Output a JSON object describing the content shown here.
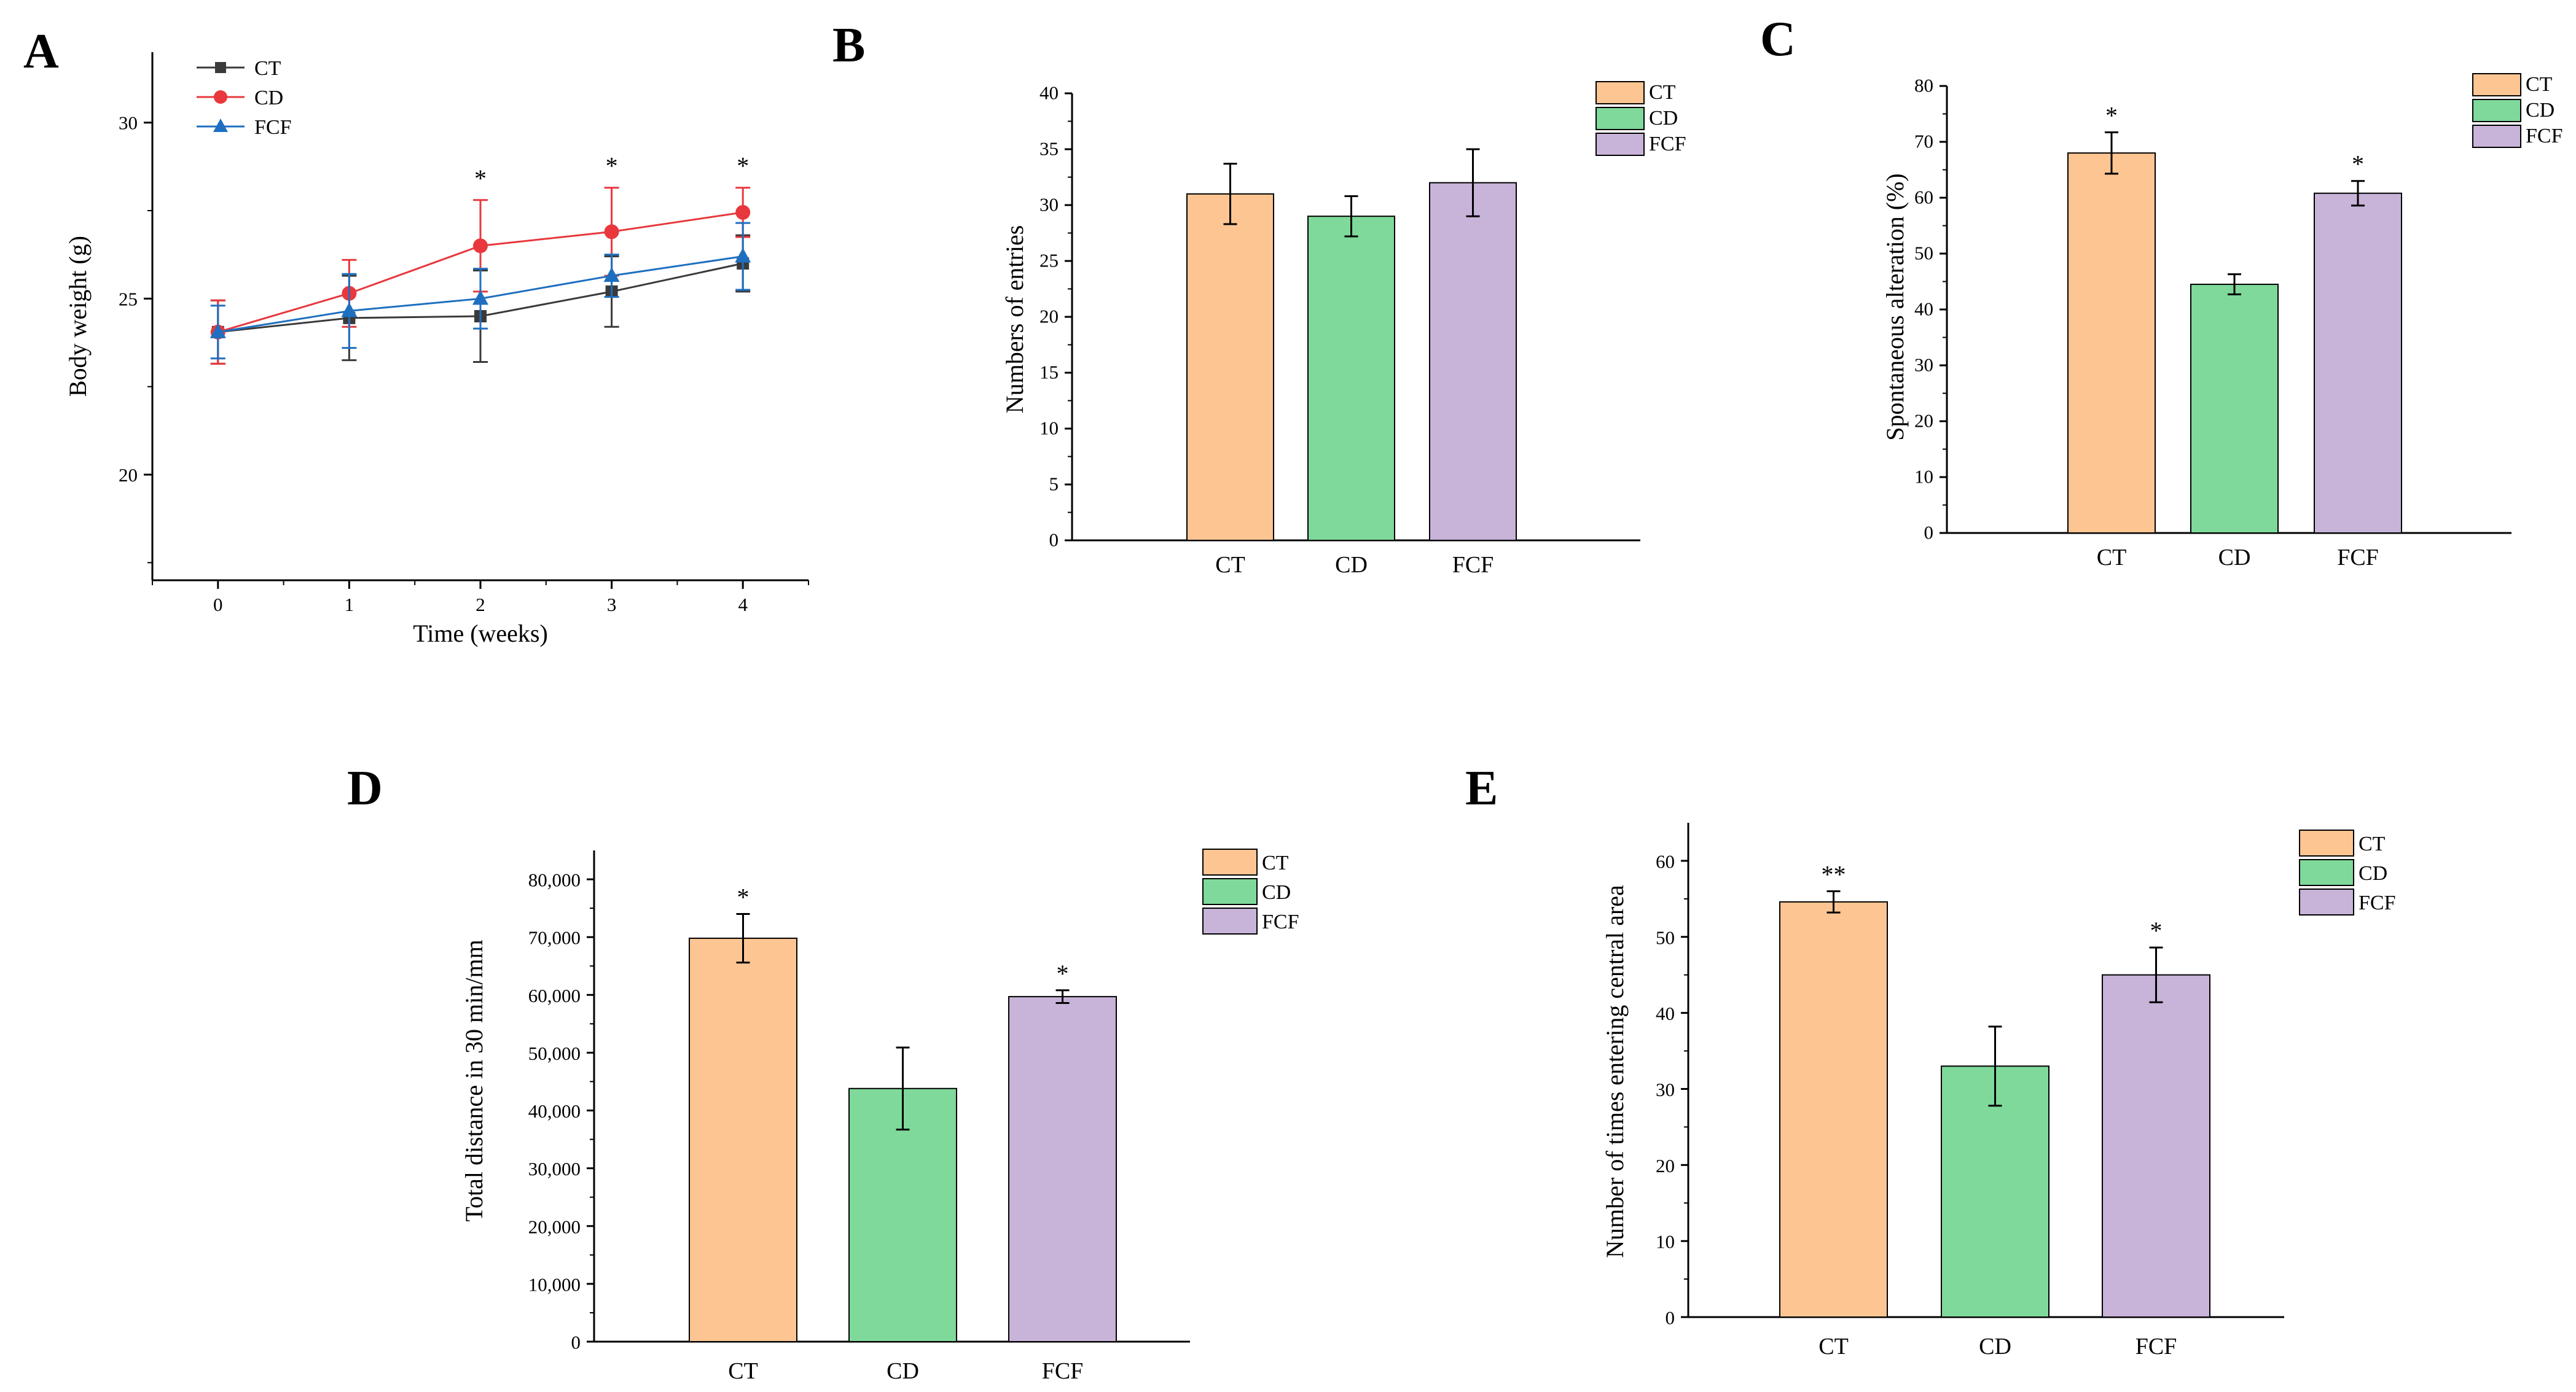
{
  "colors": {
    "CT_line": "#3a3a3a",
    "CD_line": "#e8383d",
    "FCF_line": "#1f6fc0",
    "CT_bar": "#fcc592",
    "CD_bar": "#7fd99a",
    "FCF_bar": "#c8b3d9"
  },
  "chart_data": [
    {
      "id": "A",
      "panel_label": "A",
      "type": "line",
      "xlabel": "Time (weeks)",
      "ylabel": "Body weight (g)",
      "x": [
        0,
        1,
        2,
        3,
        4
      ],
      "x_ticks": [
        "0",
        "1",
        "2",
        "3",
        "4"
      ],
      "xlim": [
        -0.5,
        4.5
      ],
      "ylim": [
        17,
        32
      ],
      "y_ticks": [
        20,
        25,
        30
      ],
      "y_tick_labels": [
        "20",
        "25",
        "30"
      ],
      "series": [
        {
          "name": "CT",
          "color_key": "CT_line",
          "marker": "square",
          "values": [
            24.05,
            24.45,
            24.5,
            25.2,
            26.0
          ],
          "errors": [
            0.9,
            1.2,
            1.3,
            1.0,
            0.8
          ]
        },
        {
          "name": "CD",
          "color_key": "CD_line",
          "marker": "circle",
          "values": [
            24.05,
            25.15,
            26.5,
            26.9,
            27.45
          ],
          "errors": [
            0.9,
            0.95,
            1.3,
            1.25,
            0.7
          ]
        },
        {
          "name": "FCF",
          "color_key": "FCF_line",
          "marker": "triangle",
          "values": [
            24.05,
            24.65,
            25.0,
            25.65,
            26.2
          ],
          "errors": [
            0.75,
            1.05,
            0.85,
            0.6,
            0.95
          ]
        }
      ],
      "annotations": [
        {
          "x": 2,
          "text": "*"
        },
        {
          "x": 3,
          "text": "*"
        },
        {
          "x": 4,
          "text": "*"
        }
      ],
      "legend": [
        "CT",
        "CD",
        "FCF"
      ],
      "legend_position": "top-left"
    },
    {
      "id": "B",
      "panel_label": "B",
      "type": "bar",
      "categories": [
        "CT",
        "CD",
        "FCF"
      ],
      "values": [
        31,
        29,
        32
      ],
      "errors": [
        2.7,
        1.8,
        3.0
      ],
      "stars": [
        "",
        "",
        ""
      ],
      "ylabel": "Numbers of entries",
      "xlabel": "",
      "ylim": [
        0,
        40
      ],
      "y_ticks": [
        0,
        5,
        10,
        15,
        20,
        25,
        30,
        35,
        40
      ],
      "y_tick_labels": [
        "0",
        "5",
        "10",
        "15",
        "20",
        "25",
        "30",
        "35",
        "40"
      ],
      "legend": [
        "CT",
        "CD",
        "FCF"
      ],
      "legend_position": "top-right"
    },
    {
      "id": "C",
      "panel_label": "C",
      "type": "bar",
      "categories": [
        "CT",
        "CD",
        "FCF"
      ],
      "values": [
        68,
        44.5,
        60.8
      ],
      "errors": [
        3.7,
        1.8,
        2.2
      ],
      "stars": [
        "*",
        "",
        "*"
      ],
      "ylabel": "Spontaneous alteration (%)",
      "xlabel": "",
      "ylim": [
        0,
        80
      ],
      "y_ticks": [
        0,
        10,
        20,
        30,
        40,
        50,
        60,
        70,
        80
      ],
      "y_tick_labels": [
        "0",
        "10",
        "20",
        "30",
        "40",
        "50",
        "60",
        "70",
        "80"
      ],
      "legend": [
        "CT",
        "CD",
        "FCF"
      ],
      "legend_position": "top-right"
    },
    {
      "id": "D",
      "panel_label": "D",
      "type": "bar",
      "categories": [
        "CT",
        "CD",
        "FCF"
      ],
      "values": [
        69800,
        43800,
        59700
      ],
      "errors": [
        4200,
        7100,
        1100
      ],
      "stars": [
        "*",
        "",
        "*"
      ],
      "ylabel": "Total distance in 30 min/mm",
      "xlabel": "",
      "ylim": [
        0,
        85000
      ],
      "y_ticks": [
        0,
        10000,
        20000,
        30000,
        40000,
        50000,
        60000,
        70000,
        80000
      ],
      "y_tick_labels": [
        "0",
        "10,000",
        "20,000",
        "30,000",
        "40,000",
        "50,000",
        "60,000",
        "70,000",
        "80,000"
      ],
      "legend": [
        "CT",
        "CD",
        "FCF"
      ],
      "legend_position": "top-right"
    },
    {
      "id": "E",
      "panel_label": "E",
      "type": "bar",
      "categories": [
        "CT",
        "CD",
        "FCF"
      ],
      "values": [
        54.6,
        33,
        45
      ],
      "errors": [
        1.4,
        5.2,
        3.6
      ],
      "stars": [
        "**",
        "",
        "*"
      ],
      "ylabel": "Number of times entering central area",
      "xlabel": "",
      "ylim": [
        0,
        65
      ],
      "y_ticks": [
        0,
        10,
        20,
        30,
        40,
        50,
        60
      ],
      "y_tick_labels": [
        "0",
        "10",
        "20",
        "30",
        "40",
        "50",
        "60"
      ],
      "legend": [
        "CT",
        "CD",
        "FCF"
      ],
      "legend_position": "top-right"
    }
  ]
}
